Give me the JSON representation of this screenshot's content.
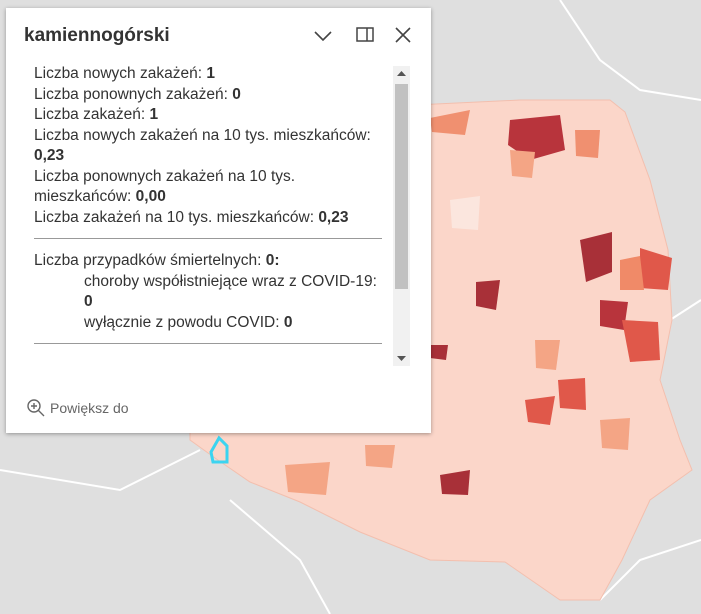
{
  "popup": {
    "title": "kamiennogórski",
    "stats": [
      {
        "label": "Liczba nowych zakażeń:",
        "value": "1"
      },
      {
        "label": "Liczba ponownych zakażeń:",
        "value": "0"
      },
      {
        "label": "Liczba zakażeń:",
        "value": "1"
      },
      {
        "label": "Liczba nowych zakażeń na 10 tys. mieszkańców:",
        "value": "0,23"
      },
      {
        "label": "Liczba ponownych zakażeń na 10 tys. mieszkańców:",
        "value": "0,00"
      },
      {
        "label": "Liczba zakażeń na 10 tys. mieszkańców:",
        "value": "0,23"
      }
    ],
    "deaths": {
      "label": "Liczba przypadków śmiertelnych:",
      "value": "0:"
    },
    "death_details": [
      {
        "label": "choroby współistniejące wraz z COVID-19:",
        "value": "0"
      },
      {
        "label": "wyłącznie z powodu COVID:",
        "value": "0"
      }
    ],
    "action": "Powiększ do"
  }
}
